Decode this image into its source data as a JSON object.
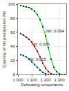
{
  "chart_data": {
    "type": "line",
    "xlabel": "Reheating temperature",
    "ylabel": "Quantity of Nb precipitated (%)",
    "xlim": [
      1000,
      1350
    ],
    "ylim": [
      0,
      100
    ],
    "xticks": [
      {
        "value": 1000,
        "label": "1 000"
      },
      {
        "value": 1100,
        "label": "1 100"
      },
      {
        "value": 1200,
        "label": "1 200"
      },
      {
        "value": 1300,
        "label": "1 300"
      }
    ],
    "yticks": [
      0,
      20,
      40,
      60,
      80,
      100
    ],
    "grid": true,
    "marker": "square",
    "series": [
      {
        "name": "Nb: 0.094",
        "color": "#22dd22",
        "x": [
          1020,
          1040,
          1060,
          1080,
          1100,
          1120,
          1140,
          1160,
          1180,
          1200,
          1220,
          1240,
          1260,
          1280,
          1300,
          1320,
          1340
        ],
        "values": [
          98,
          97,
          96,
          95,
          93,
          90,
          85,
          78,
          68,
          55,
          38,
          22,
          10,
          4,
          1,
          0,
          0
        ]
      },
      {
        "name": "Nb: 0.036",
        "color": "#ff3333",
        "x": [
          1020,
          1040,
          1060,
          1080,
          1100,
          1120,
          1140,
          1160,
          1180,
          1200,
          1220,
          1240,
          1260,
          1280
        ],
        "values": [
          58,
          56,
          53,
          50,
          46,
          40,
          33,
          25,
          16,
          9,
          4,
          1,
          0,
          0
        ]
      },
      {
        "name": "Nb: 0.025",
        "color": "#00bbcc",
        "x": [
          1020,
          1040,
          1060,
          1080,
          1100,
          1120,
          1140,
          1160,
          1180,
          1200,
          1220,
          1240
        ],
        "values": [
          28,
          27,
          25,
          22,
          18,
          14,
          10,
          6,
          3,
          1,
          0,
          0
        ]
      }
    ],
    "annotations": [
      {
        "text": "Nb: 0.094",
        "x": 1195,
        "y": 62
      },
      {
        "text": "Nb: 0.036",
        "x": 1088,
        "y": 43
      },
      {
        "text": "Nb: 0.025",
        "x": 1063,
        "y": 22
      }
    ]
  }
}
